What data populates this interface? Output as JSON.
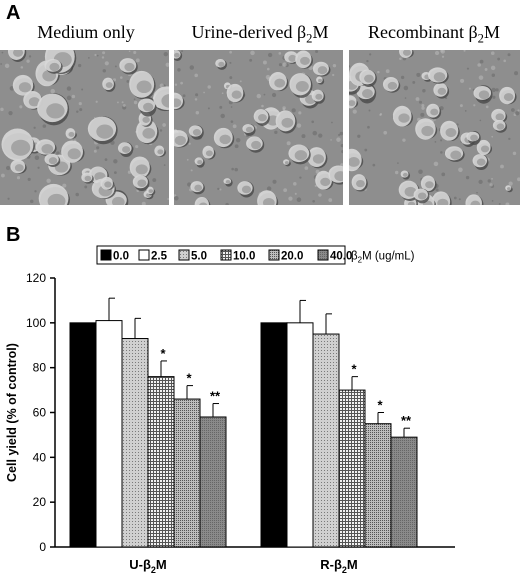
{
  "panel_a": {
    "letter": "A",
    "photos": [
      {
        "title_prefix": "Medium only",
        "title_beta": "",
        "title_sub": "",
        "title_suffix": ""
      },
      {
        "title_prefix": "Urine-derived ",
        "title_beta": "β",
        "title_sub": "2",
        "title_suffix": "M"
      },
      {
        "title_prefix": "Recombinant ",
        "title_beta": "β",
        "title_sub": "2",
        "title_suffix": "M"
      }
    ]
  },
  "panel_b": {
    "letter": "B"
  },
  "chart_data": {
    "type": "bar",
    "categories": [
      {
        "prefix": "U-",
        "beta": "β",
        "sub": "2",
        "suffix": "M"
      },
      {
        "prefix": "R-",
        "beta": "β",
        "sub": "2",
        "suffix": "M"
      }
    ],
    "series": [
      {
        "name": "0.0",
        "values": [
          100,
          100
        ],
        "errors": [
          0,
          0
        ],
        "sig": [
          "",
          ""
        ],
        "pattern": "solid-black"
      },
      {
        "name": "2.5",
        "values": [
          101,
          100
        ],
        "errors": [
          10,
          10
        ],
        "sig": [
          "",
          ""
        ],
        "pattern": "white"
      },
      {
        "name": "5.0",
        "values": [
          93,
          95
        ],
        "errors": [
          9,
          9
        ],
        "sig": [
          "",
          ""
        ],
        "pattern": "light-dots"
      },
      {
        "name": "10.0",
        "values": [
          76,
          70
        ],
        "errors": [
          7,
          6
        ],
        "sig": [
          "*",
          "*"
        ],
        "pattern": "grid"
      },
      {
        "name": "20.0",
        "values": [
          66,
          55
        ],
        "errors": [
          6,
          5
        ],
        "sig": [
          "*",
          "*"
        ],
        "pattern": "dense-dots"
      },
      {
        "name": "40.0",
        "values": [
          58,
          49
        ],
        "errors": [
          6,
          4
        ],
        "sig": [
          "**",
          "**"
        ],
        "pattern": "dark-gray"
      }
    ],
    "legend_unit_prefix": "β",
    "legend_unit_sub": "2",
    "legend_unit_suffix": "M (ug/mL)",
    "ylabel": "Cell yield (% of control)",
    "ylim": [
      0,
      120
    ],
    "yticks": [
      0,
      20,
      40,
      60,
      80,
      100,
      120
    ],
    "legend_position": "top",
    "grid": false
  }
}
